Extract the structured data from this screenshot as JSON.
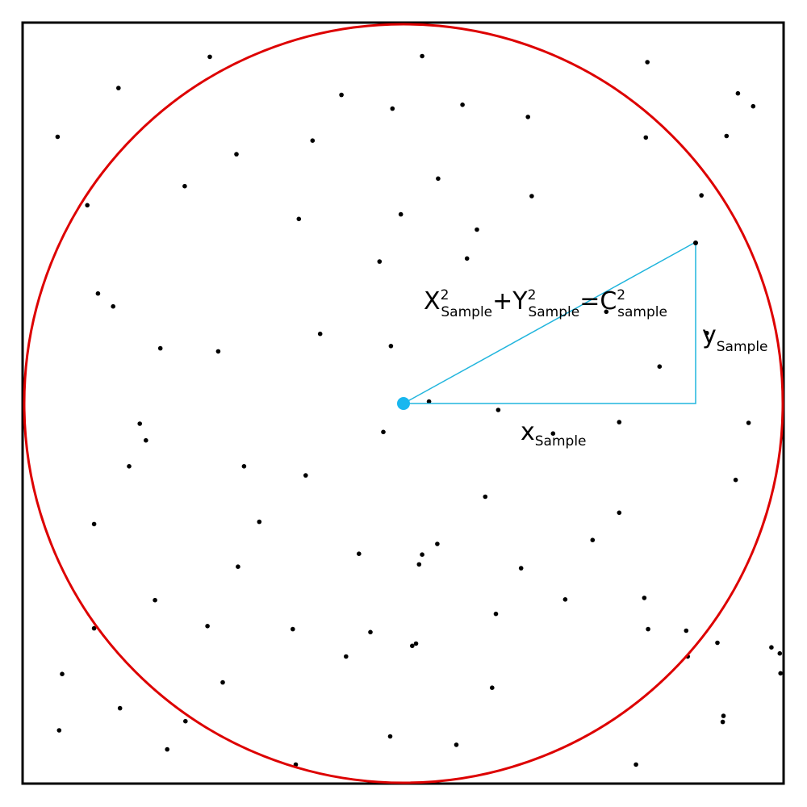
{
  "colors": {
    "frame": "#000000",
    "circle": "#dd0000",
    "triangle": "#21b5dd",
    "center": "#19b7ef",
    "dot": "#000000"
  },
  "equation": {
    "x": "X",
    "x_sup": "2",
    "x_sub": "Sample",
    "plus": "+",
    "y": "Y",
    "y_sup": "2",
    "y_sub": "Sample",
    "equals": "=",
    "c": "C",
    "c_sup": "2",
    "c_sub": "sample"
  },
  "x_label": {
    "main": "x",
    "sub": "Sample"
  },
  "y_label": {
    "main": "y",
    "sub": "Sample"
  },
  "sample_points": [
    [
      0.246,
      0.955
    ],
    [
      0.525,
      0.956
    ],
    [
      0.821,
      0.948
    ],
    [
      0.94,
      0.907
    ],
    [
      0.96,
      0.89
    ],
    [
      0.126,
      0.914
    ],
    [
      0.419,
      0.905
    ],
    [
      0.486,
      0.887
    ],
    [
      0.578,
      0.892
    ],
    [
      0.664,
      0.876
    ],
    [
      0.819,
      0.849
    ],
    [
      0.925,
      0.851
    ],
    [
      0.046,
      0.85
    ],
    [
      0.281,
      0.827
    ],
    [
      0.381,
      0.845
    ],
    [
      0.546,
      0.795
    ],
    [
      0.669,
      0.772
    ],
    [
      0.213,
      0.785
    ],
    [
      0.085,
      0.76
    ],
    [
      0.363,
      0.742
    ],
    [
      0.497,
      0.748
    ],
    [
      0.597,
      0.728
    ],
    [
      0.892,
      0.773
    ],
    [
      0.099,
      0.644
    ],
    [
      0.181,
      0.572
    ],
    [
      0.119,
      0.627
    ],
    [
      0.257,
      0.568
    ],
    [
      0.469,
      0.686
    ],
    [
      0.391,
      0.591
    ],
    [
      0.584,
      0.69
    ],
    [
      0.899,
      0.592
    ],
    [
      0.154,
      0.473
    ],
    [
      0.162,
      0.451
    ],
    [
      0.372,
      0.405
    ],
    [
      0.484,
      0.575
    ],
    [
      0.625,
      0.491
    ],
    [
      0.767,
      0.62
    ],
    [
      0.837,
      0.548
    ],
    [
      0.954,
      0.474
    ],
    [
      0.094,
      0.341
    ],
    [
      0.291,
      0.417
    ],
    [
      0.474,
      0.462
    ],
    [
      0.534,
      0.502
    ],
    [
      0.697,
      0.46
    ],
    [
      0.784,
      0.356
    ],
    [
      0.937,
      0.399
    ],
    [
      0.14,
      0.417
    ],
    [
      0.311,
      0.344
    ],
    [
      0.525,
      0.301
    ],
    [
      0.521,
      0.288
    ],
    [
      0.608,
      0.377
    ],
    [
      0.655,
      0.283
    ],
    [
      0.749,
      0.32
    ],
    [
      0.784,
      0.475
    ],
    [
      0.094,
      0.204
    ],
    [
      0.243,
      0.207
    ],
    [
      0.355,
      0.203
    ],
    [
      0.512,
      0.181
    ],
    [
      0.622,
      0.223
    ],
    [
      0.872,
      0.201
    ],
    [
      0.048,
      0.07
    ],
    [
      0.052,
      0.144
    ],
    [
      0.174,
      0.241
    ],
    [
      0.283,
      0.285
    ],
    [
      0.442,
      0.302
    ],
    [
      0.545,
      0.315
    ],
    [
      0.713,
      0.242
    ],
    [
      0.817,
      0.244
    ],
    [
      0.913,
      0.185
    ],
    [
      0.921,
      0.089
    ],
    [
      0.128,
      0.099
    ],
    [
      0.214,
      0.082
    ],
    [
      0.263,
      0.133
    ],
    [
      0.425,
      0.167
    ],
    [
      0.457,
      0.199
    ],
    [
      0.517,
      0.184
    ],
    [
      0.617,
      0.126
    ],
    [
      0.822,
      0.203
    ],
    [
      0.92,
      0.081
    ],
    [
      0.984,
      0.179
    ],
    [
      0.19,
      0.045
    ],
    [
      0.359,
      0.025
    ],
    [
      0.483,
      0.062
    ],
    [
      0.57,
      0.051
    ],
    [
      0.806,
      0.025
    ],
    [
      0.874,
      0.167
    ],
    [
      0.996,
      0.145
    ],
    [
      0.995,
      0.171
    ]
  ]
}
